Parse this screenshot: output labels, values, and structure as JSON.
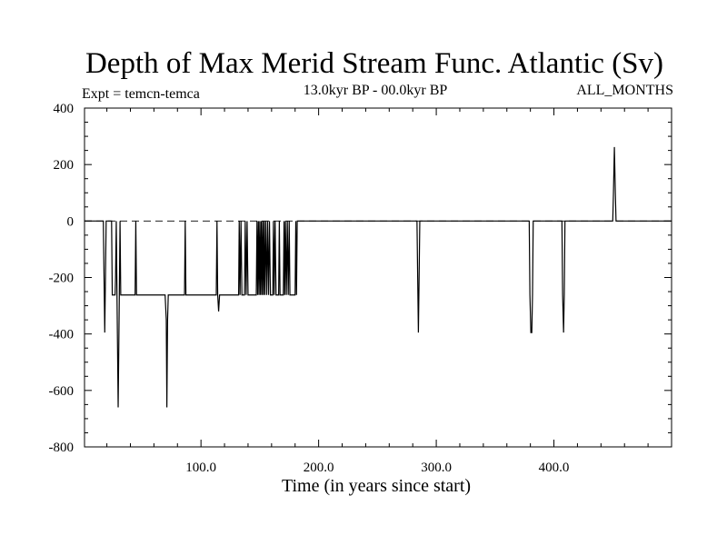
{
  "chart_data": {
    "type": "line",
    "title": "Depth of Max Merid Stream Func. Atlantic (Sv)",
    "subtitle_left": "Expt = temcn-temca",
    "subtitle_center": "13.0kyr BP - 00.0kyr BP",
    "subtitle_right": "ALL_MONTHS",
    "xlabel": "Time (in years since start)",
    "ylabel": "",
    "xlim": [
      1,
      500
    ],
    "ylim": [
      -800,
      400
    ],
    "xticks": [
      100,
      200,
      300,
      400
    ],
    "xtick_labels": [
      "100.0",
      "200.0",
      "300.0",
      "400.0"
    ],
    "yticks": [
      400,
      200,
      0,
      -200,
      -400,
      -600,
      -800
    ],
    "ytick_labels": [
      "400",
      "200",
      "0",
      "-200",
      "-400",
      "-600",
      "-800"
    ],
    "zero_line": "dashed",
    "grid": false,
    "series": [
      {
        "points": [
          [
            1,
            0
          ],
          [
            17,
            0
          ],
          [
            17.6,
            -200
          ],
          [
            18.2,
            -395
          ],
          [
            18.8,
            -200
          ],
          [
            19.4,
            0
          ],
          [
            24,
            0
          ],
          [
            24.6,
            -262
          ],
          [
            27,
            -262
          ],
          [
            27.4,
            -200
          ],
          [
            28,
            0
          ],
          [
            28.6,
            -262
          ],
          [
            29.6,
            -660
          ],
          [
            30.6,
            -262
          ],
          [
            31.2,
            0
          ],
          [
            31.8,
            -262
          ],
          [
            44,
            -262
          ],
          [
            44.6,
            0
          ],
          [
            45.2,
            -262
          ],
          [
            69.5,
            -262
          ],
          [
            70.5,
            -350
          ],
          [
            71,
            -660
          ],
          [
            71.6,
            -350
          ],
          [
            72.2,
            -262
          ],
          [
            86,
            -262
          ],
          [
            86.6,
            0
          ],
          [
            87.2,
            -262
          ],
          [
            113,
            -262
          ],
          [
            113.6,
            0
          ],
          [
            114.2,
            -262
          ],
          [
            115,
            -320
          ],
          [
            115.8,
            -262
          ],
          [
            132,
            -262
          ],
          [
            132.5,
            0
          ],
          [
            133.2,
            -262
          ],
          [
            134,
            0
          ],
          [
            134.8,
            -262
          ],
          [
            137,
            -262
          ],
          [
            137.6,
            0
          ],
          [
            138.4,
            -262
          ],
          [
            139.2,
            0
          ],
          [
            140,
            -262
          ],
          [
            147,
            -262
          ],
          [
            147.6,
            0
          ],
          [
            148.2,
            -262
          ],
          [
            148.8,
            0
          ],
          [
            149.4,
            -262
          ],
          [
            150,
            0
          ],
          [
            150.6,
            -262
          ],
          [
            151.2,
            0
          ],
          [
            151.8,
            -262
          ],
          [
            152.4,
            0
          ],
          [
            153,
            -262
          ],
          [
            153.6,
            0
          ],
          [
            154.2,
            -262
          ],
          [
            155,
            0
          ],
          [
            155.8,
            -262
          ],
          [
            156.6,
            0
          ],
          [
            157.4,
            -262
          ],
          [
            158.2,
            0
          ],
          [
            159,
            -262
          ],
          [
            161,
            -262
          ],
          [
            161.6,
            0
          ],
          [
            162.2,
            -262
          ],
          [
            163,
            0
          ],
          [
            163.8,
            -262
          ],
          [
            166,
            -262
          ],
          [
            166.6,
            0
          ],
          [
            167.2,
            -262
          ],
          [
            170,
            -262
          ],
          [
            170.6,
            0
          ],
          [
            171.2,
            -262
          ],
          [
            171.8,
            0
          ],
          [
            172.6,
            -262
          ],
          [
            173.4,
            0
          ],
          [
            174.2,
            -262
          ],
          [
            175,
            0
          ],
          [
            175.6,
            -262
          ],
          [
            180,
            -262
          ],
          [
            180.6,
            0
          ],
          [
            181.2,
            -262
          ],
          [
            181.8,
            0
          ],
          [
            283.6,
            0
          ],
          [
            284.2,
            -200
          ],
          [
            284.8,
            -395
          ],
          [
            285.4,
            -200
          ],
          [
            286,
            0
          ],
          [
            379,
            0
          ],
          [
            379.6,
            -262
          ],
          [
            380.4,
            -395
          ],
          [
            381.2,
            -395
          ],
          [
            381.8,
            -262
          ],
          [
            382.4,
            0
          ],
          [
            406.8,
            0
          ],
          [
            407.4,
            -262
          ],
          [
            408.2,
            -395
          ],
          [
            408.8,
            -262
          ],
          [
            409.4,
            0
          ],
          [
            450,
            0
          ],
          [
            450.6,
            100
          ],
          [
            451.4,
            262
          ],
          [
            452.2,
            100
          ],
          [
            452.8,
            0
          ],
          [
            500,
            0
          ]
        ]
      }
    ]
  }
}
